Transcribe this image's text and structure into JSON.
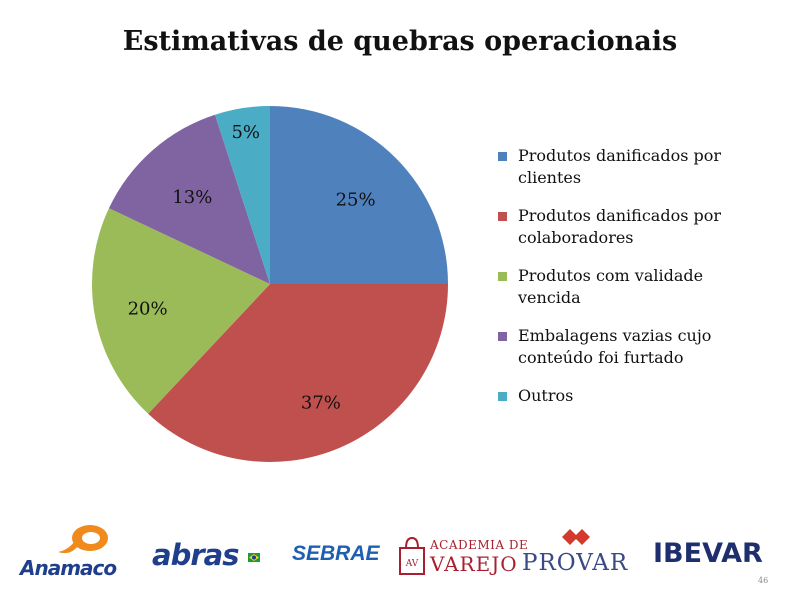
{
  "chart_data": {
    "type": "pie",
    "title": "Estimativas de quebras operacionais",
    "slices": [
      {
        "name": "Produtos danificados por clientes",
        "value": 25,
        "label": "25%",
        "color": "#4f81bd"
      },
      {
        "name": "Produtos danificados por colaboradores",
        "value": 37,
        "label": "37%",
        "color": "#c0504d"
      },
      {
        "name": "Produtos com validade vencida",
        "value": 20,
        "label": "20%",
        "color": "#9bbb59"
      },
      {
        "name": "Embalagens vazias cujo conteúdo foi furtado",
        "value": 13,
        "label": "13%",
        "color": "#8064a2"
      },
      {
        "name": "Outros",
        "value": 5,
        "label": "5%",
        "color": "#4bacc6"
      }
    ],
    "legend_position": "right"
  },
  "legend": {
    "items": [
      {
        "line1": "Produtos danificados por",
        "line2": "clientes"
      },
      {
        "line1": "Produtos danificados por",
        "line2": "colaboradores"
      },
      {
        "line1": "Produtos com validade",
        "line2": "vencida"
      },
      {
        "line1": "Embalagens vazias cujo",
        "line2": "conteúdo foi furtado"
      },
      {
        "line1": "Outros",
        "line2": ""
      }
    ]
  },
  "logos": {
    "anamaco": "Anamaco",
    "abras": "abras",
    "sebrae": "SEBRAE",
    "academia_top": "ACADEMIA DE",
    "academia_bottom": "VAREJO",
    "academia_mark": "AV",
    "provar": "PROVAR",
    "ibevar": "IBEVAR"
  },
  "page_number": "46"
}
